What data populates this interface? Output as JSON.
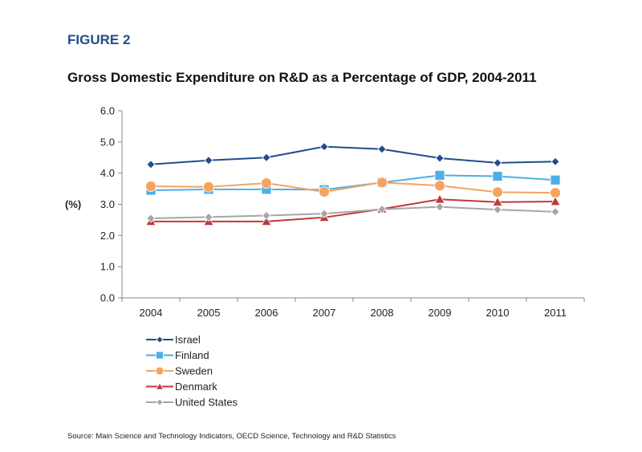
{
  "figure_label": "FIGURE 2",
  "title": "Gross Domestic Expenditure on R&D as a Percentage of GDP, 2004-2011",
  "source": "Source: Main Science and Technology Indicators, OECD Science, Technology and R&D Statistics",
  "chart_data": {
    "type": "line",
    "title": "Gross Domestic Expenditure on R&D as a Percentage of GDP, 2004-2011",
    "xlabel": "",
    "ylabel": "(%)",
    "ylim": [
      0,
      6
    ],
    "yticks": [
      "0.0",
      "1.0",
      "2.0",
      "3.0",
      "4.0",
      "5.0",
      "6.0"
    ],
    "categories": [
      "2004",
      "2005",
      "2006",
      "2007",
      "2008",
      "2009",
      "2010",
      "2011"
    ],
    "grid": false,
    "legend_position": "bottom-left",
    "series": [
      {
        "name": "Israel",
        "color": "#1f4e8c",
        "marker": "diamond",
        "values": [
          4.28,
          4.41,
          4.5,
          4.85,
          4.77,
          4.48,
          4.33,
          4.37
        ]
      },
      {
        "name": "Finland",
        "color": "#4eaee6",
        "marker": "square",
        "values": [
          3.45,
          3.48,
          3.48,
          3.47,
          3.7,
          3.93,
          3.9,
          3.78
        ]
      },
      {
        "name": "Sweden",
        "color": "#f4a460",
        "marker": "circle",
        "values": [
          3.58,
          3.56,
          3.68,
          3.4,
          3.7,
          3.6,
          3.39,
          3.37
        ]
      },
      {
        "name": "Denmark",
        "color": "#c0393b",
        "marker": "triangle",
        "values": [
          2.45,
          2.45,
          2.45,
          2.58,
          2.85,
          3.16,
          3.07,
          3.09
        ]
      },
      {
        "name": "United States",
        "color": "#a6a6a6",
        "marker": "diamond",
        "values": [
          2.55,
          2.59,
          2.64,
          2.7,
          2.84,
          2.92,
          2.83,
          2.76
        ]
      }
    ]
  }
}
